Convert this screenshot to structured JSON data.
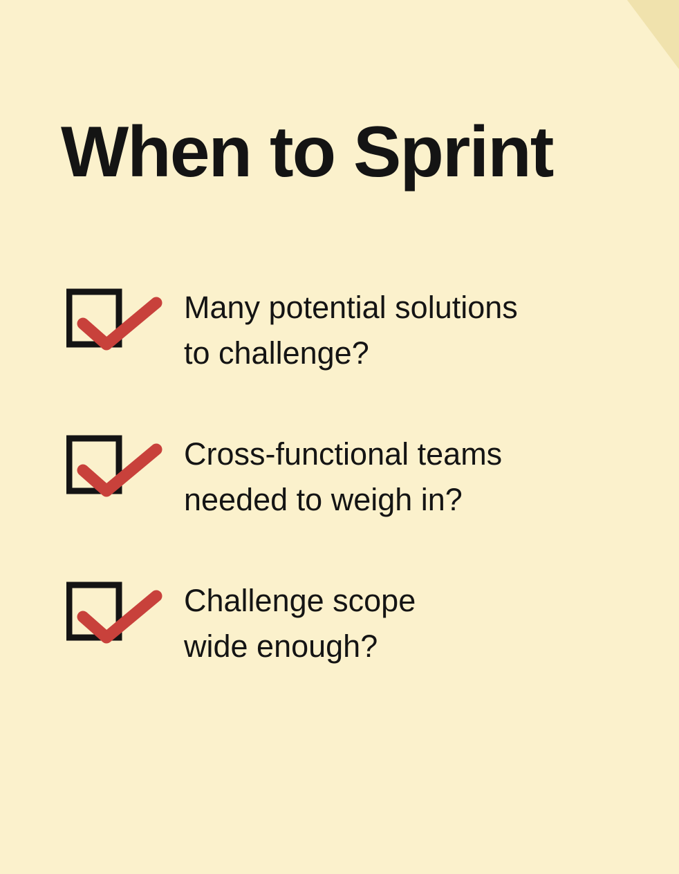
{
  "slide": {
    "title": "When to Sprint",
    "items": [
      {
        "text": "Many potential solutions\nto challenge?",
        "checked": true
      },
      {
        "text": "Cross-functional teams\nneeded to weigh in?",
        "checked": true
      },
      {
        "text": "Challenge scope\nwide enough?",
        "checked": true
      }
    ]
  },
  "colors": {
    "background": "#fbf1cc",
    "text": "#141414",
    "checkmark": "#c8413b",
    "box": "#141414",
    "corner_fold": "#f0e2ad"
  },
  "icons": {
    "checkbox": "checked-box-icon",
    "corner": "page-corner-fold"
  }
}
